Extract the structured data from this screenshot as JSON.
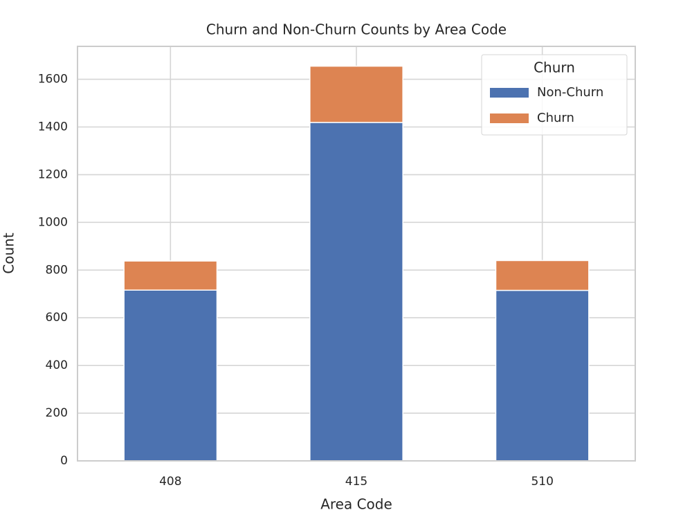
{
  "chart_data": {
    "type": "stacked_bar",
    "title": "Churn and Non-Churn Counts by Area Code",
    "x_label": "Area Code",
    "y_label": "Count",
    "categories": [
      "408",
      "415",
      "510"
    ],
    "series": [
      {
        "name": "Non-Churn",
        "color": "#4c72b0",
        "values": [
          716,
          1419,
          715
        ]
      },
      {
        "name": "Churn",
        "color": "#dd8452",
        "values": [
          122,
          236,
          125
        ]
      }
    ],
    "legend_title": "Churn",
    "legend": "upper right",
    "ylim": [
      0,
      1738
    ],
    "yticks": [
      0,
      200,
      400,
      600,
      800,
      1000,
      1200,
      1400,
      1600
    ],
    "grid": true
  }
}
